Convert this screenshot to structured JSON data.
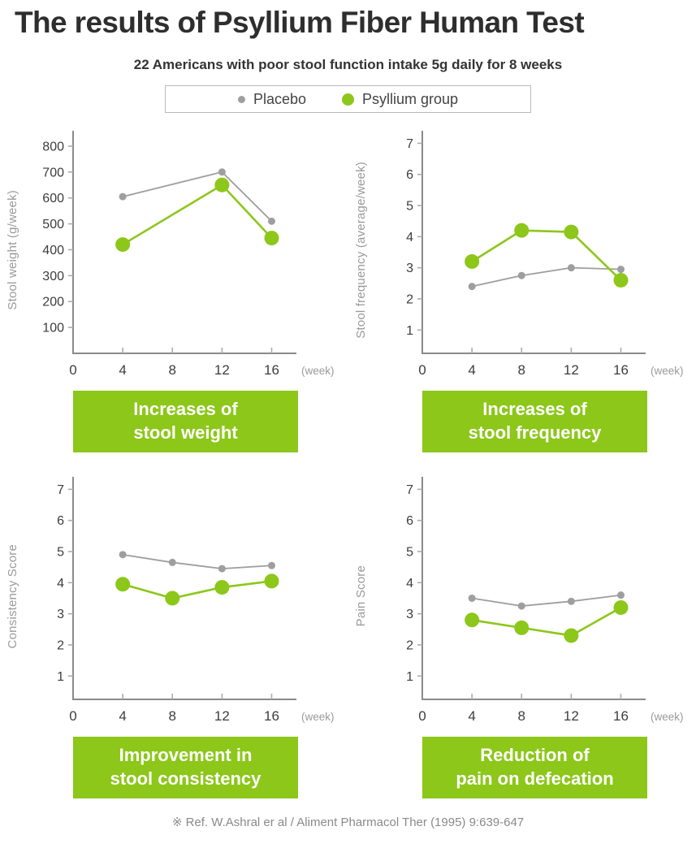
{
  "page": {
    "title": "The results of Psyllium Fiber Human Test",
    "subtitle": "22 Americans with poor stool function intake 5g daily for 8 weeks",
    "footer": "※ Ref. W.Ashral er al / Aliment Pharmacol Ther (1995) 9:639-647"
  },
  "colors": {
    "green": "#8CC71A",
    "gray": "#9E9E9E",
    "axis": "#8A8A8A",
    "tick": "#ABABAB",
    "tick_label": "#3D3D3D",
    "muted_label": "#9A9A9A"
  },
  "legend": {
    "items": [
      {
        "label": "Placebo",
        "color": "#9E9E9E"
      },
      {
        "label": "Psyllium group",
        "color": "#8CC71A"
      }
    ]
  },
  "chart_data": [
    {
      "type": "line",
      "ylabel": "Stool weight (g/week)",
      "xlabel_suffix": "(week)",
      "x_tick_labels": [
        0,
        4,
        8,
        12,
        16
      ],
      "x_ticks": [
        4,
        8,
        12,
        16
      ],
      "y_ticks": [
        100,
        200,
        300,
        400,
        500,
        600,
        700,
        800
      ],
      "ylim": [
        0,
        853
      ],
      "xlim": [
        0,
        17.8
      ],
      "grid": false,
      "series": [
        {
          "name": "Placebo",
          "color": "#9E9E9E",
          "x": [
            4,
            12,
            16
          ],
          "values": [
            605,
            700,
            510
          ]
        },
        {
          "name": "Psyllium group",
          "color": "#8CC71A",
          "x": [
            4,
            12,
            16
          ],
          "values": [
            420,
            650,
            445
          ]
        }
      ],
      "caption": [
        "Increases of",
        "stool weight"
      ]
    },
    {
      "type": "line",
      "ylabel": "Stool frequency (average/week)",
      "xlabel_suffix": "(week)",
      "x_tick_labels": [
        0,
        4,
        8,
        12,
        16
      ],
      "x_ticks": [
        4,
        8,
        12,
        16
      ],
      "y_ticks": [
        1,
        2,
        3,
        4,
        5,
        6,
        7
      ],
      "ylim": [
        0.25,
        7.35
      ],
      "xlim": [
        0,
        17.8
      ],
      "grid": false,
      "series": [
        {
          "name": "Placebo",
          "color": "#9E9E9E",
          "x": [
            4,
            8,
            12,
            16
          ],
          "values": [
            2.4,
            2.75,
            3.0,
            2.95
          ]
        },
        {
          "name": "Psyllium group",
          "color": "#8CC71A",
          "x": [
            4,
            8,
            12,
            16
          ],
          "values": [
            3.2,
            4.2,
            4.15,
            2.6
          ]
        }
      ],
      "caption": [
        "Increases of",
        "stool frequency"
      ]
    },
    {
      "type": "line",
      "ylabel": "Consistency Score",
      "xlabel_suffix": "(week)",
      "x_tick_labels": [
        0,
        4,
        8,
        12,
        16
      ],
      "x_ticks": [
        4,
        8,
        12,
        16
      ],
      "y_ticks": [
        1,
        2,
        3,
        4,
        5,
        6,
        7
      ],
      "ylim": [
        0.25,
        7.35
      ],
      "xlim": [
        0,
        17.8
      ],
      "grid": false,
      "series": [
        {
          "name": "Placebo",
          "color": "#9E9E9E",
          "x": [
            4,
            8,
            12,
            16
          ],
          "values": [
            4.9,
            4.65,
            4.45,
            4.55
          ]
        },
        {
          "name": "Psyllium group",
          "color": "#8CC71A",
          "x": [
            4,
            8,
            12,
            16
          ],
          "values": [
            3.95,
            3.5,
            3.85,
            4.05
          ]
        }
      ],
      "caption": [
        "Improvement in",
        "stool consistency"
      ]
    },
    {
      "type": "line",
      "ylabel": "Pain Score",
      "xlabel_suffix": "(week)",
      "x_tick_labels": [
        0,
        4,
        8,
        12,
        16
      ],
      "x_ticks": [
        4,
        8,
        12,
        16
      ],
      "y_ticks": [
        1,
        2,
        3,
        4,
        5,
        6,
        7
      ],
      "ylim": [
        0.25,
        7.35
      ],
      "xlim": [
        0,
        17.8
      ],
      "grid": false,
      "series": [
        {
          "name": "Placebo",
          "color": "#9E9E9E",
          "x": [
            4,
            8,
            12,
            16
          ],
          "values": [
            3.5,
            3.25,
            3.4,
            3.6
          ]
        },
        {
          "name": "Psyllium group",
          "color": "#8CC71A",
          "x": [
            4,
            8,
            12,
            16
          ],
          "values": [
            2.8,
            2.55,
            2.3,
            3.2
          ]
        }
      ],
      "caption": [
        "Reduction of",
        "pain on defecation"
      ]
    }
  ]
}
